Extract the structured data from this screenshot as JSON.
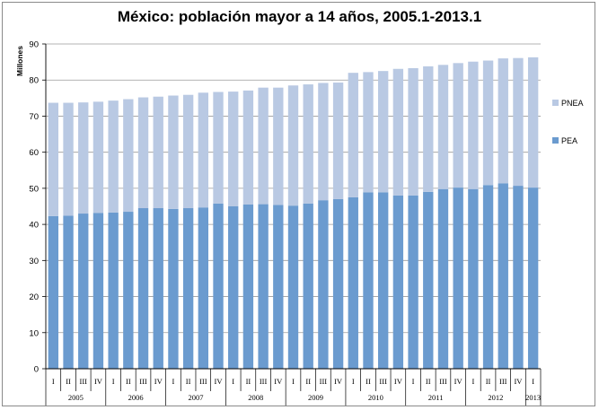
{
  "chart_data": {
    "type": "bar",
    "stacked": true,
    "title": "México: población mayor a 14 años, 2005.1-2013.1",
    "ylabel": "Millones",
    "xlabel": "",
    "ylim": [
      0,
      90
    ],
    "yticks": [
      0,
      10,
      20,
      30,
      40,
      50,
      60,
      70,
      80,
      90
    ],
    "grid": true,
    "legend_placement": "right",
    "quarter_labels": [
      "I",
      "II",
      "III",
      "IV",
      "I",
      "II",
      "III",
      "IV",
      "I",
      "II",
      "III",
      "IV",
      "I",
      "II",
      "III",
      "IV",
      "I",
      "II",
      "III",
      "IV",
      "I",
      "II",
      "III",
      "IV",
      "I",
      "II",
      "III",
      "IV",
      "I",
      "II",
      "III",
      "IV",
      "I"
    ],
    "years": [
      {
        "label": "2005",
        "count": 4
      },
      {
        "label": "2006",
        "count": 4
      },
      {
        "label": "2007",
        "count": 4
      },
      {
        "label": "2008",
        "count": 4
      },
      {
        "label": "2009",
        "count": 4
      },
      {
        "label": "2010",
        "count": 4
      },
      {
        "label": "2011",
        "count": 4
      },
      {
        "label": "2012",
        "count": 4
      },
      {
        "label": "2013",
        "count": 1
      }
    ],
    "series": [
      {
        "name": "PEA",
        "color": "#6b9bcf",
        "values": [
          42.3,
          42.4,
          43.0,
          43.2,
          43.3,
          43.5,
          44.5,
          44.5,
          44.3,
          44.5,
          44.7,
          45.8,
          45.0,
          45.5,
          45.6,
          45.4,
          45.2,
          45.8,
          46.7,
          47.0,
          47.5,
          48.9,
          48.9,
          48.0,
          48.0,
          49.0,
          49.8,
          50.2,
          49.8,
          50.9,
          51.4,
          50.7,
          50.2
        ]
      },
      {
        "name": "PNEA",
        "color": "#b9c9e3",
        "values": [
          31.4,
          31.3,
          30.8,
          30.8,
          31.0,
          31.2,
          30.7,
          30.9,
          31.4,
          31.4,
          31.8,
          30.9,
          31.8,
          31.6,
          32.3,
          32.5,
          33.3,
          33.0,
          32.5,
          32.3,
          34.5,
          33.3,
          33.6,
          35.1,
          35.3,
          34.8,
          34.4,
          34.5,
          35.3,
          34.5,
          34.6,
          35.4,
          36.1
        ]
      }
    ]
  }
}
